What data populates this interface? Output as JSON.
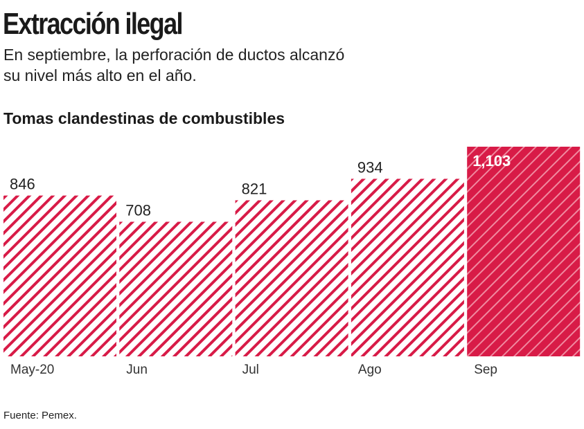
{
  "title": "Extracción ilegal",
  "subtitle": "En septiembre, la perforación de ductos alcanzó su nivel más alto en el año.",
  "source": "Fuente: Pemex.",
  "colors": {
    "accent": "#d81b47",
    "stripe": "#d81b47",
    "highlight_stripe": "#f08aa0"
  },
  "chart_data": {
    "type": "bar",
    "title": "Tomas clandestinas de combustibles",
    "categories": [
      "May-20",
      "Jun",
      "Jul",
      "Ago",
      "Sep"
    ],
    "values": [
      846,
      708,
      821,
      934,
      1103
    ],
    "value_labels": [
      "846",
      "708",
      "821",
      "934",
      "1,103"
    ],
    "highlight": "Sep",
    "ylim": [
      0,
      1103
    ],
    "grid": false,
    "legend": "none"
  }
}
